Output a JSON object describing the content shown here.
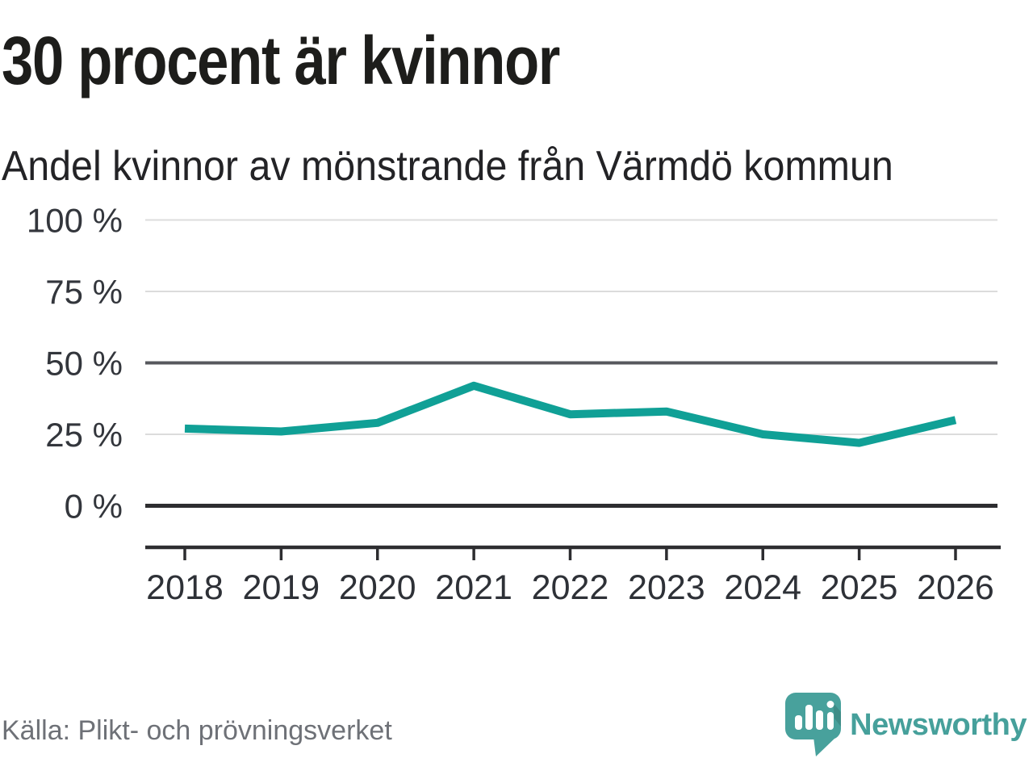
{
  "header": {
    "title": "30 procent är kvinnor",
    "subtitle": "Andel kvinnor av mönstrande från Värmdö kommun"
  },
  "chart_data": {
    "type": "line",
    "title": "30 procent är kvinnor",
    "subtitle": "Andel kvinnor av mönstrande från Värmdö kommun",
    "categories": [
      "2018",
      "2019",
      "2020",
      "2021",
      "2022",
      "2023",
      "2024",
      "2025",
      "2026"
    ],
    "series": [
      {
        "name": "Andel kvinnor av mönstrande från Värmdö kommun",
        "values": [
          27,
          26,
          29,
          42,
          32,
          33,
          25,
          22,
          30
        ]
      }
    ],
    "unit": "%",
    "xlabel": "",
    "ylabel": "",
    "ylim": [
      0,
      100
    ],
    "yticks": [
      0,
      25,
      50,
      75,
      100
    ],
    "ytick_labels": [
      "0 %",
      "25 %",
      "50 %",
      "75 %",
      "100 %"
    ],
    "grid": true,
    "emphasized_gridlines": [
      0,
      50
    ],
    "legend": "none",
    "line_color": "#10a096"
  },
  "source": {
    "label": "Källa: Plikt- och prövningsverket"
  },
  "branding": {
    "name": "Newsworthy",
    "logo_color": "#48a19c"
  },
  "colors": {
    "accent_teal": "#10a096",
    "logo_teal": "#48a19c",
    "grid_light": "#dcdcdc",
    "grid_mid": "#57585d",
    "axis_dark": "#2d2d30",
    "title_text": "#1d1d1b",
    "tick_text": "#33363c",
    "source_text": "#6e7177"
  }
}
